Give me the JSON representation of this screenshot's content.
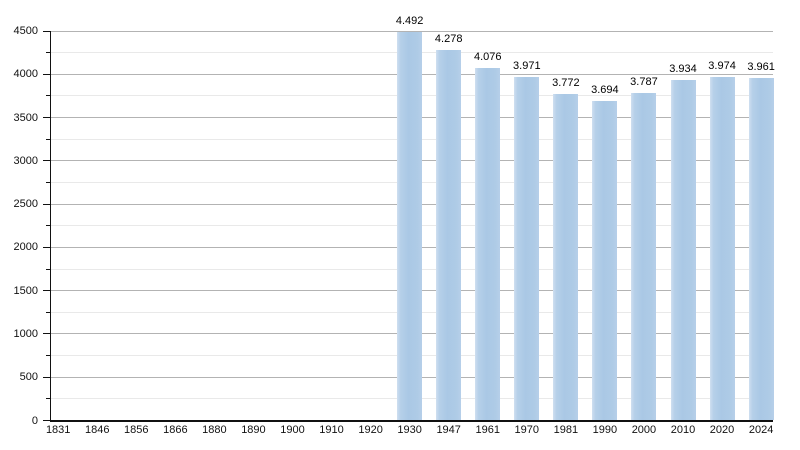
{
  "chart_data": {
    "type": "bar",
    "title": "",
    "xlabel": "",
    "ylabel": "",
    "categories": [
      "1831",
      "1846",
      "1856",
      "1866",
      "1880",
      "1890",
      "1900",
      "1910",
      "1920",
      "1930",
      "1947",
      "1961",
      "1970",
      "1981",
      "1990",
      "2000",
      "2010",
      "2020",
      "2024"
    ],
    "values": [
      null,
      null,
      null,
      null,
      null,
      null,
      null,
      null,
      null,
      4492,
      4278,
      4076,
      3971,
      3772,
      3694,
      3787,
      3934,
      3974,
      3961
    ],
    "value_labels": [
      null,
      null,
      null,
      null,
      null,
      null,
      null,
      null,
      null,
      "4.492",
      "4.278",
      "4.076",
      "3.971",
      "3.772",
      "3.694",
      "3.787",
      "3.934",
      "3.974",
      "3.961"
    ],
    "ylim": [
      0,
      4500
    ],
    "y_major_step": 500,
    "y_minor_step": 250,
    "y_tick_labels": [
      "0",
      "500",
      "1000",
      "1500",
      "2000",
      "2500",
      "3000",
      "3500",
      "4000",
      "4500"
    ],
    "grid": "horizontal-major-and-minor",
    "legend": "none",
    "colors": {
      "bar_fill": "#aecbe6",
      "bar_highlight": "#cfdff0",
      "major_gridline": "#b3b3b3",
      "minor_gridline": "#e9e9e9",
      "axis": "#111111",
      "label_text": "#111111",
      "background": "#ffffff"
    }
  }
}
